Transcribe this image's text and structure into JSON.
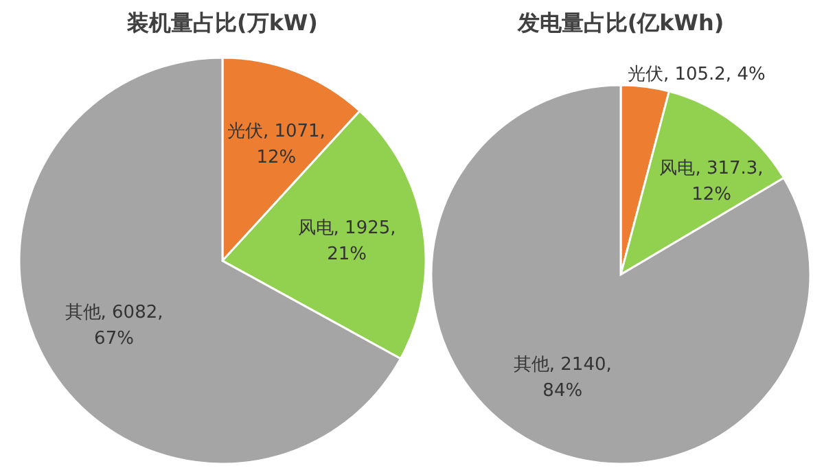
{
  "chart_data": [
    {
      "type": "pie",
      "title": "装机量占比(万kW)",
      "categories": [
        "光伏",
        "风电",
        "其他"
      ],
      "values": [
        1071,
        1925,
        6082
      ],
      "colors": [
        "#ed7d31",
        "#92d050",
        "#a5a5a5"
      ],
      "value_labels": [
        "1071, 12%",
        "1925, 21%",
        "6082, 67%"
      ]
    },
    {
      "type": "pie",
      "title": "发电量占比(亿kWh)",
      "categories": [
        "光伏",
        "风电",
        "其他"
      ],
      "values": [
        105.2,
        317.3,
        2140
      ],
      "colors": [
        "#ed7d31",
        "#92d050",
        "#a5a5a5"
      ],
      "value_labels": [
        "105.2, 4%",
        "317.3, 12%",
        "2140, 84%"
      ]
    }
  ]
}
